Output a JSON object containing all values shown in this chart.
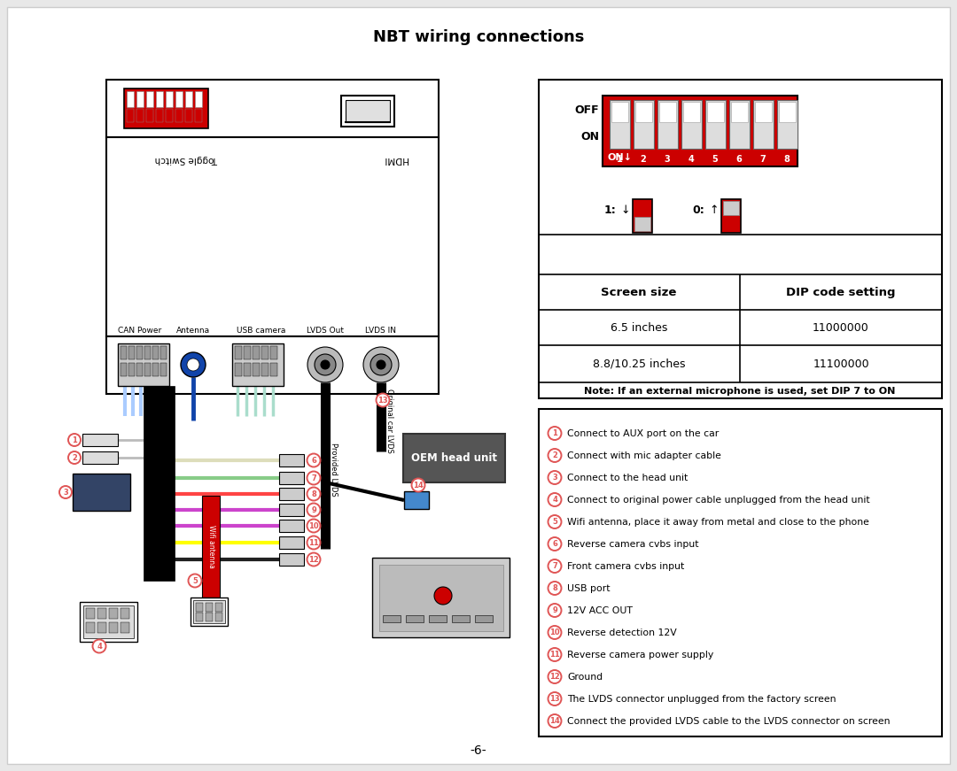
{
  "title": "NBT wiring connections",
  "page_num": "-6-",
  "bg_color": "#e8e8e8",
  "white": "#ffffff",
  "black": "#000000",
  "red_color": "#cc0000",
  "circle_color": "#e05555",
  "gray_light": "#dddddd",
  "gray_mid": "#aaaaaa",
  "gray_dark": "#555555",
  "blue_ant": "#1144aa",
  "legend_items": [
    "Connect to AUX port on the car",
    "Connect with mic adapter cable",
    "Connect to the head unit",
    "Connect to original power cable unplugged from the head unit",
    "Wifi antenna, place it away from metal and close to the phone",
    "Reverse camera cvbs input",
    "Front camera cvbs input",
    "USB port",
    "12V ACC OUT",
    "Reverse detection 12V",
    "Reverse camera power supply",
    "Ground",
    "The LVDS connector unplugged from the factory screen",
    "Connect the provided LVDS cable to the LVDS connector on screen"
  ],
  "table_headers": [
    "Screen size",
    "DIP code setting"
  ],
  "table_rows": [
    [
      "6.5 inches",
      "11000000"
    ],
    [
      "8.8/10.25 inches",
      "11100000"
    ]
  ],
  "table_note": "Note: If an external microphone is used, set DIP 7 to ON",
  "connector_labels": [
    "CAN Power",
    "Antenna",
    "USB camera",
    "LVDS Out",
    "LVDS IN"
  ],
  "wire_colors": [
    "#ddddbb",
    "#88cc88",
    "#ff4444",
    "#cc44cc",
    "#cc44cc",
    "#ffff00",
    "#222222"
  ]
}
